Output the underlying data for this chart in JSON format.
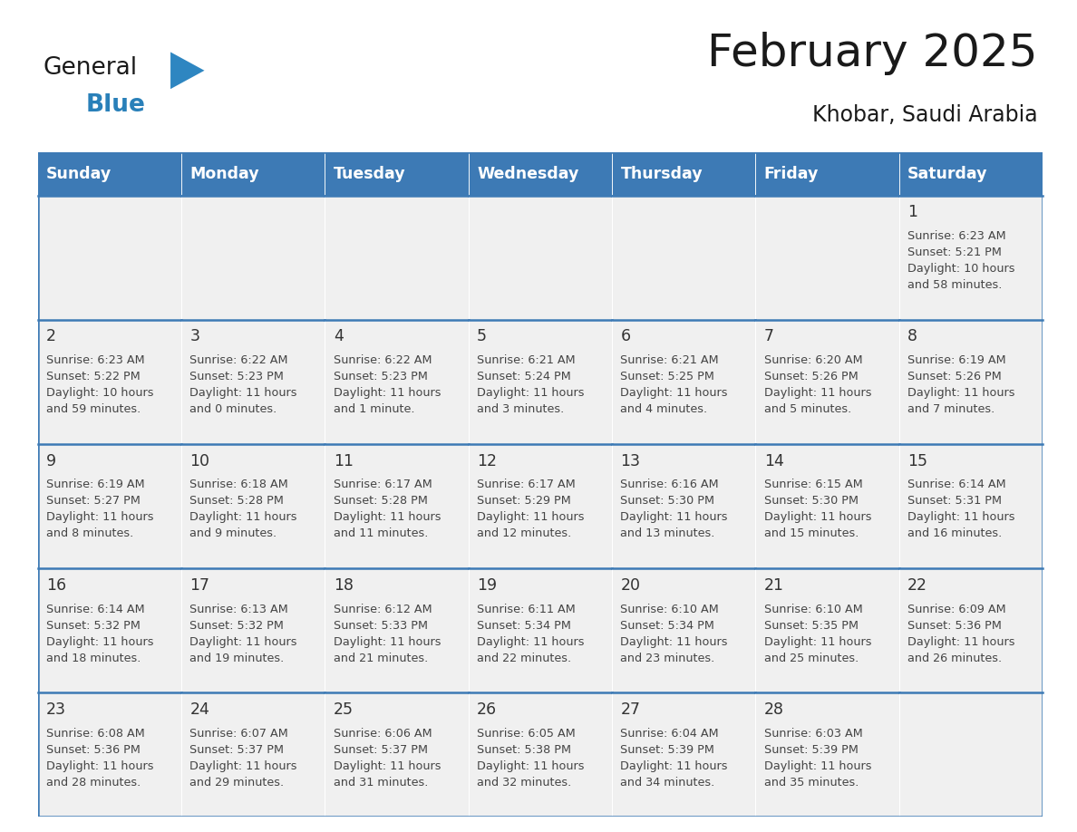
{
  "title": "February 2025",
  "subtitle": "Khobar, Saudi Arabia",
  "days_of_week": [
    "Sunday",
    "Monday",
    "Tuesday",
    "Wednesday",
    "Thursday",
    "Friday",
    "Saturday"
  ],
  "header_bg": "#3d7ab5",
  "header_text": "#ffffff",
  "cell_bg_light": "#f0f0f0",
  "cell_bg_white": "#ffffff",
  "border_color": "#3d7ab5",
  "text_color": "#444444",
  "day_num_color": "#333333",
  "title_color": "#1a1a1a",
  "calendar_data": [
    [
      null,
      null,
      null,
      null,
      null,
      null,
      {
        "day": 1,
        "sunrise": "6:23 AM",
        "sunset": "5:21 PM",
        "daylight": "10 hours and 58 minutes."
      }
    ],
    [
      {
        "day": 2,
        "sunrise": "6:23 AM",
        "sunset": "5:22 PM",
        "daylight": "10 hours and 59 minutes."
      },
      {
        "day": 3,
        "sunrise": "6:22 AM",
        "sunset": "5:23 PM",
        "daylight": "11 hours and 0 minutes."
      },
      {
        "day": 4,
        "sunrise": "6:22 AM",
        "sunset": "5:23 PM",
        "daylight": "11 hours and 1 minute."
      },
      {
        "day": 5,
        "sunrise": "6:21 AM",
        "sunset": "5:24 PM",
        "daylight": "11 hours and 3 minutes."
      },
      {
        "day": 6,
        "sunrise": "6:21 AM",
        "sunset": "5:25 PM",
        "daylight": "11 hours and 4 minutes."
      },
      {
        "day": 7,
        "sunrise": "6:20 AM",
        "sunset": "5:26 PM",
        "daylight": "11 hours and 5 minutes."
      },
      {
        "day": 8,
        "sunrise": "6:19 AM",
        "sunset": "5:26 PM",
        "daylight": "11 hours and 7 minutes."
      }
    ],
    [
      {
        "day": 9,
        "sunrise": "6:19 AM",
        "sunset": "5:27 PM",
        "daylight": "11 hours and 8 minutes."
      },
      {
        "day": 10,
        "sunrise": "6:18 AM",
        "sunset": "5:28 PM",
        "daylight": "11 hours and 9 minutes."
      },
      {
        "day": 11,
        "sunrise": "6:17 AM",
        "sunset": "5:28 PM",
        "daylight": "11 hours and 11 minutes."
      },
      {
        "day": 12,
        "sunrise": "6:17 AM",
        "sunset": "5:29 PM",
        "daylight": "11 hours and 12 minutes."
      },
      {
        "day": 13,
        "sunrise": "6:16 AM",
        "sunset": "5:30 PM",
        "daylight": "11 hours and 13 minutes."
      },
      {
        "day": 14,
        "sunrise": "6:15 AM",
        "sunset": "5:30 PM",
        "daylight": "11 hours and 15 minutes."
      },
      {
        "day": 15,
        "sunrise": "6:14 AM",
        "sunset": "5:31 PM",
        "daylight": "11 hours and 16 minutes."
      }
    ],
    [
      {
        "day": 16,
        "sunrise": "6:14 AM",
        "sunset": "5:32 PM",
        "daylight": "11 hours and 18 minutes."
      },
      {
        "day": 17,
        "sunrise": "6:13 AM",
        "sunset": "5:32 PM",
        "daylight": "11 hours and 19 minutes."
      },
      {
        "day": 18,
        "sunrise": "6:12 AM",
        "sunset": "5:33 PM",
        "daylight": "11 hours and 21 minutes."
      },
      {
        "day": 19,
        "sunrise": "6:11 AM",
        "sunset": "5:34 PM",
        "daylight": "11 hours and 22 minutes."
      },
      {
        "day": 20,
        "sunrise": "6:10 AM",
        "sunset": "5:34 PM",
        "daylight": "11 hours and 23 minutes."
      },
      {
        "day": 21,
        "sunrise": "6:10 AM",
        "sunset": "5:35 PM",
        "daylight": "11 hours and 25 minutes."
      },
      {
        "day": 22,
        "sunrise": "6:09 AM",
        "sunset": "5:36 PM",
        "daylight": "11 hours and 26 minutes."
      }
    ],
    [
      {
        "day": 23,
        "sunrise": "6:08 AM",
        "sunset": "5:36 PM",
        "daylight": "11 hours and 28 minutes."
      },
      {
        "day": 24,
        "sunrise": "6:07 AM",
        "sunset": "5:37 PM",
        "daylight": "11 hours and 29 minutes."
      },
      {
        "day": 25,
        "sunrise": "6:06 AM",
        "sunset": "5:37 PM",
        "daylight": "11 hours and 31 minutes."
      },
      {
        "day": 26,
        "sunrise": "6:05 AM",
        "sunset": "5:38 PM",
        "daylight": "11 hours and 32 minutes."
      },
      {
        "day": 27,
        "sunrise": "6:04 AM",
        "sunset": "5:39 PM",
        "daylight": "11 hours and 34 minutes."
      },
      {
        "day": 28,
        "sunrise": "6:03 AM",
        "sunset": "5:39 PM",
        "daylight": "11 hours and 35 minutes."
      },
      null
    ]
  ],
  "logo_text_general": "General",
  "logo_text_blue": "Blue",
  "logo_color_general": "#1a1a1a",
  "logo_color_blue": "#2980b9",
  "logo_triangle_color": "#2e86c1"
}
